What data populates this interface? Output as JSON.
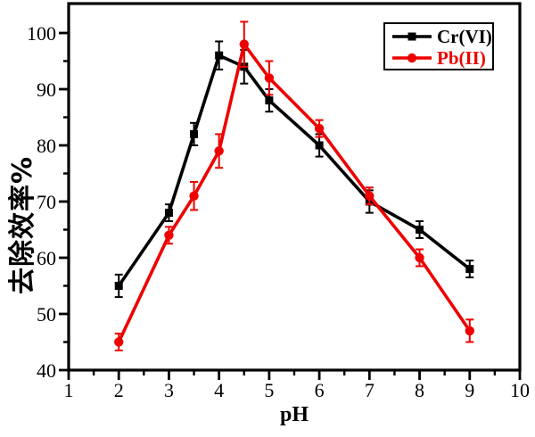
{
  "chart_data": {
    "type": "line",
    "title": "",
    "xlabel": "pH",
    "ylabel": "去除效率%",
    "xlim": [
      1,
      10
    ],
    "ylim": [
      40,
      100
    ],
    "x_major_ticks": [
      1,
      2,
      3,
      4,
      5,
      6,
      7,
      8,
      9,
      10
    ],
    "y_major_ticks": [
      40,
      50,
      60,
      70,
      80,
      90,
      100
    ],
    "x_minor_step": 0.5,
    "y_minor_step": 5,
    "grid": false,
    "legend_position": "top-right",
    "x": [
      2,
      3,
      3.5,
      4,
      4.5,
      5,
      6,
      7,
      8,
      9
    ],
    "series": [
      {
        "name": "Cr(VI)",
        "color": "#000000",
        "marker": "square",
        "values": [
          55,
          68,
          82,
          96,
          94,
          88,
          80,
          70,
          65,
          58
        ],
        "errors": [
          2,
          1.5,
          2,
          2.5,
          3,
          2,
          2,
          2,
          1.5,
          1.5
        ]
      },
      {
        "name": "Pb(II)",
        "color": "#ee0000",
        "marker": "circle",
        "values": [
          45,
          64,
          71,
          79,
          98,
          92,
          83,
          71,
          60,
          47
        ],
        "errors": [
          1.5,
          1.5,
          2.5,
          3,
          4,
          3,
          1.5,
          1.5,
          1.5,
          2
        ]
      }
    ]
  }
}
